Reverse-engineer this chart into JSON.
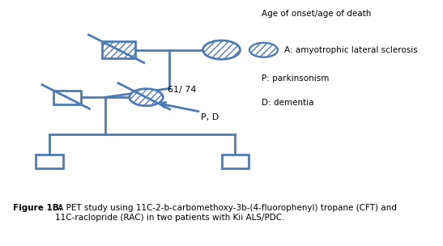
{
  "color": "#4E7BB5",
  "bg_color": "#ffffff",
  "legend_text_0": "Age of onset/age of death",
  "legend_text_1": "A: amyotrophic lateral sclerosis",
  "legend_text_2": "P: parkinsonism",
  "legend_text_3": "D: dementia",
  "age_label": "61/ 74",
  "pd_label": "P, D",
  "caption_bold": "Figure 1B:",
  "caption_rest": " A PET study using 11C-2-b-carbomethoxy-3b-(4-fluorophenyl) tropane (CFT) and 11C-raclopride (RAC) in two patients with Kii ALS/PDC.",
  "lw": 2.0,
  "hatch": "////"
}
